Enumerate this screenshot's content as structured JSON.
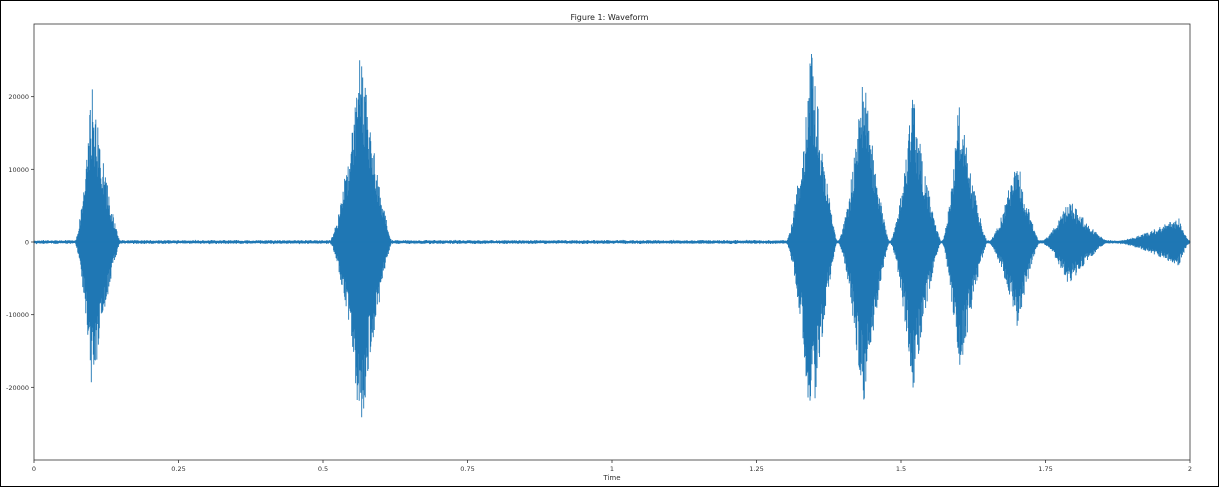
{
  "chart_data": {
    "type": "line",
    "title": "Figure 1: Waveform",
    "xlabel": "Time",
    "ylabel": "",
    "xlim": [
      0,
      2
    ],
    "ylim": [
      -30000,
      30000
    ],
    "x_ticks": [
      {
        "value": 0,
        "label": "0"
      },
      {
        "value": 0.25,
        "label": "0.25"
      },
      {
        "value": 0.5,
        "label": "0.5"
      },
      {
        "value": 0.75,
        "label": "0.75"
      },
      {
        "value": 1,
        "label": "1"
      },
      {
        "value": 1.25,
        "label": "1.25"
      },
      {
        "value": 1.5,
        "label": "1.5"
      },
      {
        "value": 1.75,
        "label": "1.75"
      },
      {
        "value": 2,
        "label": "2"
      }
    ],
    "y_ticks": [
      {
        "value": 20000,
        "label": "20000"
      },
      {
        "value": 10000,
        "label": "10000"
      },
      {
        "value": 0,
        "label": "0"
      },
      {
        "value": -10000,
        "label": "-10000"
      },
      {
        "value": -20000,
        "label": "-20000"
      }
    ],
    "grid": false,
    "color": "#1f77b4",
    "series": [
      {
        "bursts": [
          {
            "start": 0.07,
            "peak": 0.1,
            "end": 0.15,
            "amp_pos": 21500,
            "amp_neg": 21500
          },
          {
            "start": 0.51,
            "peak": 0.565,
            "end": 0.62,
            "amp_pos": 26500,
            "amp_neg": 26500
          },
          {
            "start": 1.3,
            "peak": 1.345,
            "end": 1.39,
            "amp_pos": 27000,
            "amp_neg": 27000
          },
          {
            "start": 1.39,
            "peak": 1.435,
            "end": 1.48,
            "amp_pos": 24000,
            "amp_neg": 24000
          },
          {
            "start": 1.48,
            "peak": 1.52,
            "end": 1.57,
            "amp_pos": 20500,
            "amp_neg": 21000
          },
          {
            "start": 1.57,
            "peak": 1.6,
            "end": 1.65,
            "amp_pos": 19500,
            "amp_neg": 20000
          },
          {
            "start": 1.65,
            "peak": 1.7,
            "end": 1.74,
            "amp_pos": 12000,
            "amp_neg": 12500
          },
          {
            "start": 1.74,
            "peak": 1.79,
            "end": 1.86,
            "amp_pos": 6000,
            "amp_neg": 6000
          },
          {
            "start": 1.86,
            "peak": 1.98,
            "end": 2.0,
            "amp_pos": 3500,
            "amp_neg": 3500
          }
        ]
      }
    ]
  }
}
